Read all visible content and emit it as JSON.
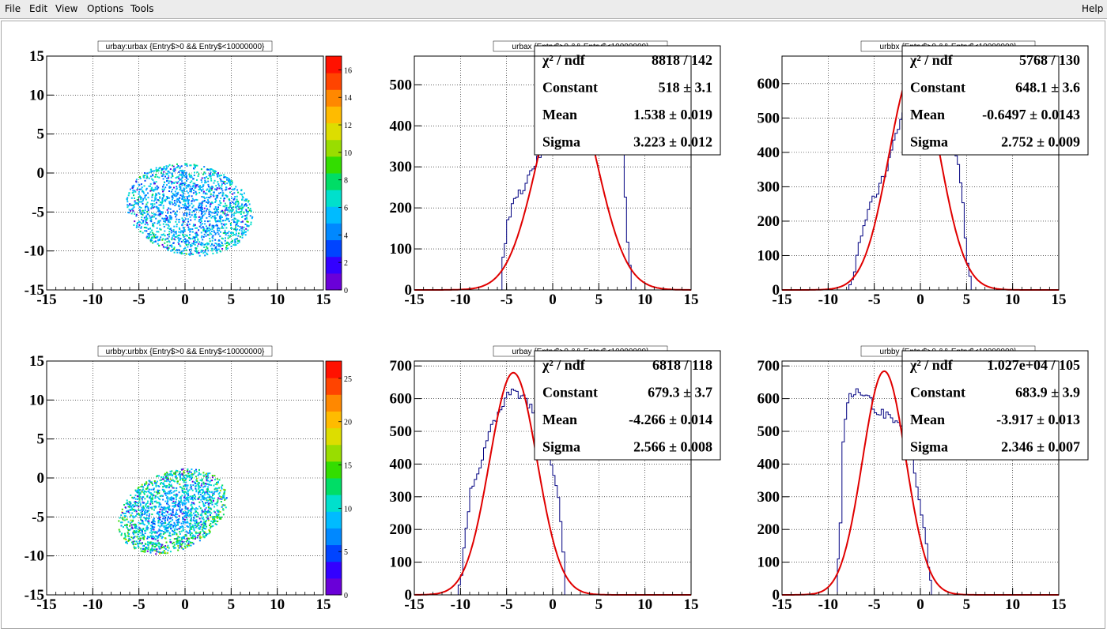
{
  "menu": {
    "items": [
      "File",
      "Edit",
      "View",
      "Options",
      "Tools"
    ],
    "help": "Help"
  },
  "colors": {
    "hist_line": "#000080",
    "fit_line": "#e00000",
    "palette": [
      "#6a00d8",
      "#3300ff",
      "#0044ff",
      "#0088ff",
      "#00bbff",
      "#00e0cc",
      "#00dd66",
      "#33dd00",
      "#99dd00",
      "#dddd00",
      "#ffbb00",
      "#ff8800",
      "#ff4400",
      "#ff1100"
    ]
  },
  "chart_data": [
    {
      "type": "heatmap",
      "title": "urbay:urbax {Entry$>0 && Entry$<10000000}",
      "xlim": [
        -15,
        15
      ],
      "ylim": [
        -15,
        15
      ],
      "x_ticks": [
        "-15",
        "-10",
        "-5",
        "0",
        "5",
        "10",
        "15"
      ],
      "y_ticks": [
        "-15",
        "-10",
        "-5",
        "0",
        "5",
        "10",
        "15"
      ],
      "z_ticks": [
        "0",
        "2",
        "4",
        "6",
        "8",
        "10",
        "12",
        "14",
        "16"
      ],
      "zlim": [
        0,
        17
      ],
      "grid": true,
      "blob": {
        "center_x": 0.4,
        "center_y": -4.6,
        "half_width": 6.9,
        "half_height": 5.8,
        "tilt_deg": 12
      }
    },
    {
      "type": "line",
      "title": "urbax {Entry$>0 && Entry$<10000000}",
      "xlim": [
        -15,
        15
      ],
      "ylim": [
        0,
        570
      ],
      "x_ticks": [
        "-15",
        "-10",
        "-5",
        "0",
        "5",
        "10",
        "15"
      ],
      "y_ticks": [
        "0",
        "100",
        "200",
        "300",
        "400",
        "500"
      ],
      "grid": true,
      "hist_points": [
        [
          -15,
          0
        ],
        [
          -5.8,
          0
        ],
        [
          -5.5,
          80
        ],
        [
          -5,
          160
        ],
        [
          -4.5,
          210
        ],
        [
          -3.5,
          240
        ],
        [
          -2.5,
          280
        ],
        [
          -1.5,
          330
        ],
        [
          -0.5,
          420
        ],
        [
          0.5,
          520
        ],
        [
          1.5,
          560
        ],
        [
          2.5,
          560
        ],
        [
          3.5,
          540
        ],
        [
          4.5,
          520
        ],
        [
          6,
          500
        ],
        [
          7,
          470
        ],
        [
          7.5,
          330
        ],
        [
          8,
          120
        ],
        [
          8.5,
          0
        ],
        [
          15,
          0
        ]
      ],
      "fit": {
        "constant": 518,
        "mean": 1.538,
        "sigma": 3.223
      },
      "stats": {
        "chi2_label": "χ² / ndf",
        "chi2": "8818 / 142",
        "constant": "518 ± 3.1",
        "mean": "1.538 ± 0.019",
        "sigma": "3.223 ± 0.012"
      }
    },
    {
      "type": "line",
      "title": "urbbx {Entry$>0 && Entry$<10000000}",
      "xlim": [
        -15,
        15
      ],
      "ylim": [
        0,
        680
      ],
      "x_ticks": [
        "-15",
        "-10",
        "-5",
        "0",
        "5",
        "10",
        "15"
      ],
      "y_ticks": [
        "0",
        "100",
        "200",
        "300",
        "400",
        "500",
        "600"
      ],
      "grid": true,
      "hist_points": [
        [
          -15,
          0
        ],
        [
          -8,
          0
        ],
        [
          -7.5,
          30
        ],
        [
          -7,
          100
        ],
        [
          -6.5,
          170
        ],
        [
          -5.5,
          260
        ],
        [
          -4.5,
          300
        ],
        [
          -3.5,
          380
        ],
        [
          -2.5,
          470
        ],
        [
          -1.5,
          560
        ],
        [
          -0.5,
          600
        ],
        [
          0.5,
          560
        ],
        [
          2,
          450
        ],
        [
          3.5,
          400
        ],
        [
          4,
          360
        ],
        [
          4.5,
          250
        ],
        [
          5,
          80
        ],
        [
          5.5,
          0
        ],
        [
          15,
          0
        ]
      ],
      "fit": {
        "constant": 648.1,
        "mean": -0.6497,
        "sigma": 2.752
      },
      "stats": {
        "chi2_label": "χ² / ndf",
        "chi2": "5768 / 130",
        "constant": "648.1 ± 3.6",
        "mean": "-0.6497 ± 0.0143",
        "sigma": "2.752 ± 0.009"
      }
    },
    {
      "type": "heatmap",
      "title": "urbby:urbbx {Entry$>0 && Entry$<10000000}",
      "xlim": [
        -15,
        15
      ],
      "ylim": [
        -15,
        15
      ],
      "x_ticks": [
        "-15",
        "-10",
        "-5",
        "0",
        "5",
        "10",
        "15"
      ],
      "y_ticks": [
        "-15",
        "-10",
        "-5",
        "0",
        "5",
        "10",
        "15"
      ],
      "z_ticks": [
        "0",
        "5",
        "10",
        "15",
        "20",
        "25"
      ],
      "zlim": [
        0,
        27
      ],
      "grid": true,
      "blob": {
        "center_x": -1.4,
        "center_y": -4.2,
        "half_width": 6.2,
        "half_height": 5.0,
        "tilt_deg": -25
      }
    },
    {
      "type": "line",
      "title": "urbay {Entry$>0 && Entry$<10000000}",
      "xlim": [
        -15,
        15
      ],
      "ylim": [
        0,
        715
      ],
      "x_ticks": [
        "-15",
        "-10",
        "-5",
        "0",
        "5",
        "10",
        "15"
      ],
      "y_ticks": [
        "0",
        "100",
        "200",
        "300",
        "400",
        "500",
        "600",
        "700"
      ],
      "grid": true,
      "hist_points": [
        [
          -15,
          0
        ],
        [
          -10.5,
          0
        ],
        [
          -10,
          60
        ],
        [
          -9.5,
          200
        ],
        [
          -9,
          330
        ],
        [
          -8,
          390
        ],
        [
          -7,
          490
        ],
        [
          -6,
          560
        ],
        [
          -5,
          610
        ],
        [
          -4,
          620
        ],
        [
          -3,
          590
        ],
        [
          -2,
          560
        ],
        [
          -1,
          520
        ],
        [
          -0.5,
          440
        ],
        [
          0.5,
          300
        ],
        [
          1,
          120
        ],
        [
          1.3,
          0
        ],
        [
          15,
          0
        ]
      ],
      "fit": {
        "constant": 679.3,
        "mean": -4.266,
        "sigma": 2.566
      },
      "stats": {
        "chi2_label": "χ² / ndf",
        "chi2": "6818 / 118",
        "constant": "679.3 ± 3.7",
        "mean": "-4.266 ± 0.014",
        "sigma": "2.566 ± 0.008"
      }
    },
    {
      "type": "line",
      "title": "urbby {Entry$>0 && Entry$<10000000}",
      "xlim": [
        -15,
        15
      ],
      "ylim": [
        0,
        715
      ],
      "x_ticks": [
        "-15",
        "-10",
        "-5",
        "0",
        "5",
        "10",
        "15"
      ],
      "y_ticks": [
        "0",
        "100",
        "200",
        "300",
        "400",
        "500",
        "600",
        "700"
      ],
      "grid": true,
      "hist_points": [
        [
          -15,
          0
        ],
        [
          -9.2,
          0
        ],
        [
          -8.8,
          220
        ],
        [
          -8.5,
          480
        ],
        [
          -8,
          600
        ],
        [
          -7,
          620
        ],
        [
          -6,
          610
        ],
        [
          -5,
          570
        ],
        [
          -4,
          550
        ],
        [
          -3,
          530
        ],
        [
          -2,
          520
        ],
        [
          -1,
          430
        ],
        [
          0,
          250
        ],
        [
          0.8,
          90
        ],
        [
          1.2,
          0
        ],
        [
          15,
          0
        ]
      ],
      "fit": {
        "constant": 683.9,
        "mean": -3.917,
        "sigma": 2.346
      },
      "stats": {
        "chi2_label": "χ² / ndf",
        "chi2": "1.027e+04 / 105",
        "constant": "683.9 ± 3.9",
        "mean": "-3.917 ± 0.013",
        "sigma": "2.346 ± 0.007"
      }
    }
  ]
}
